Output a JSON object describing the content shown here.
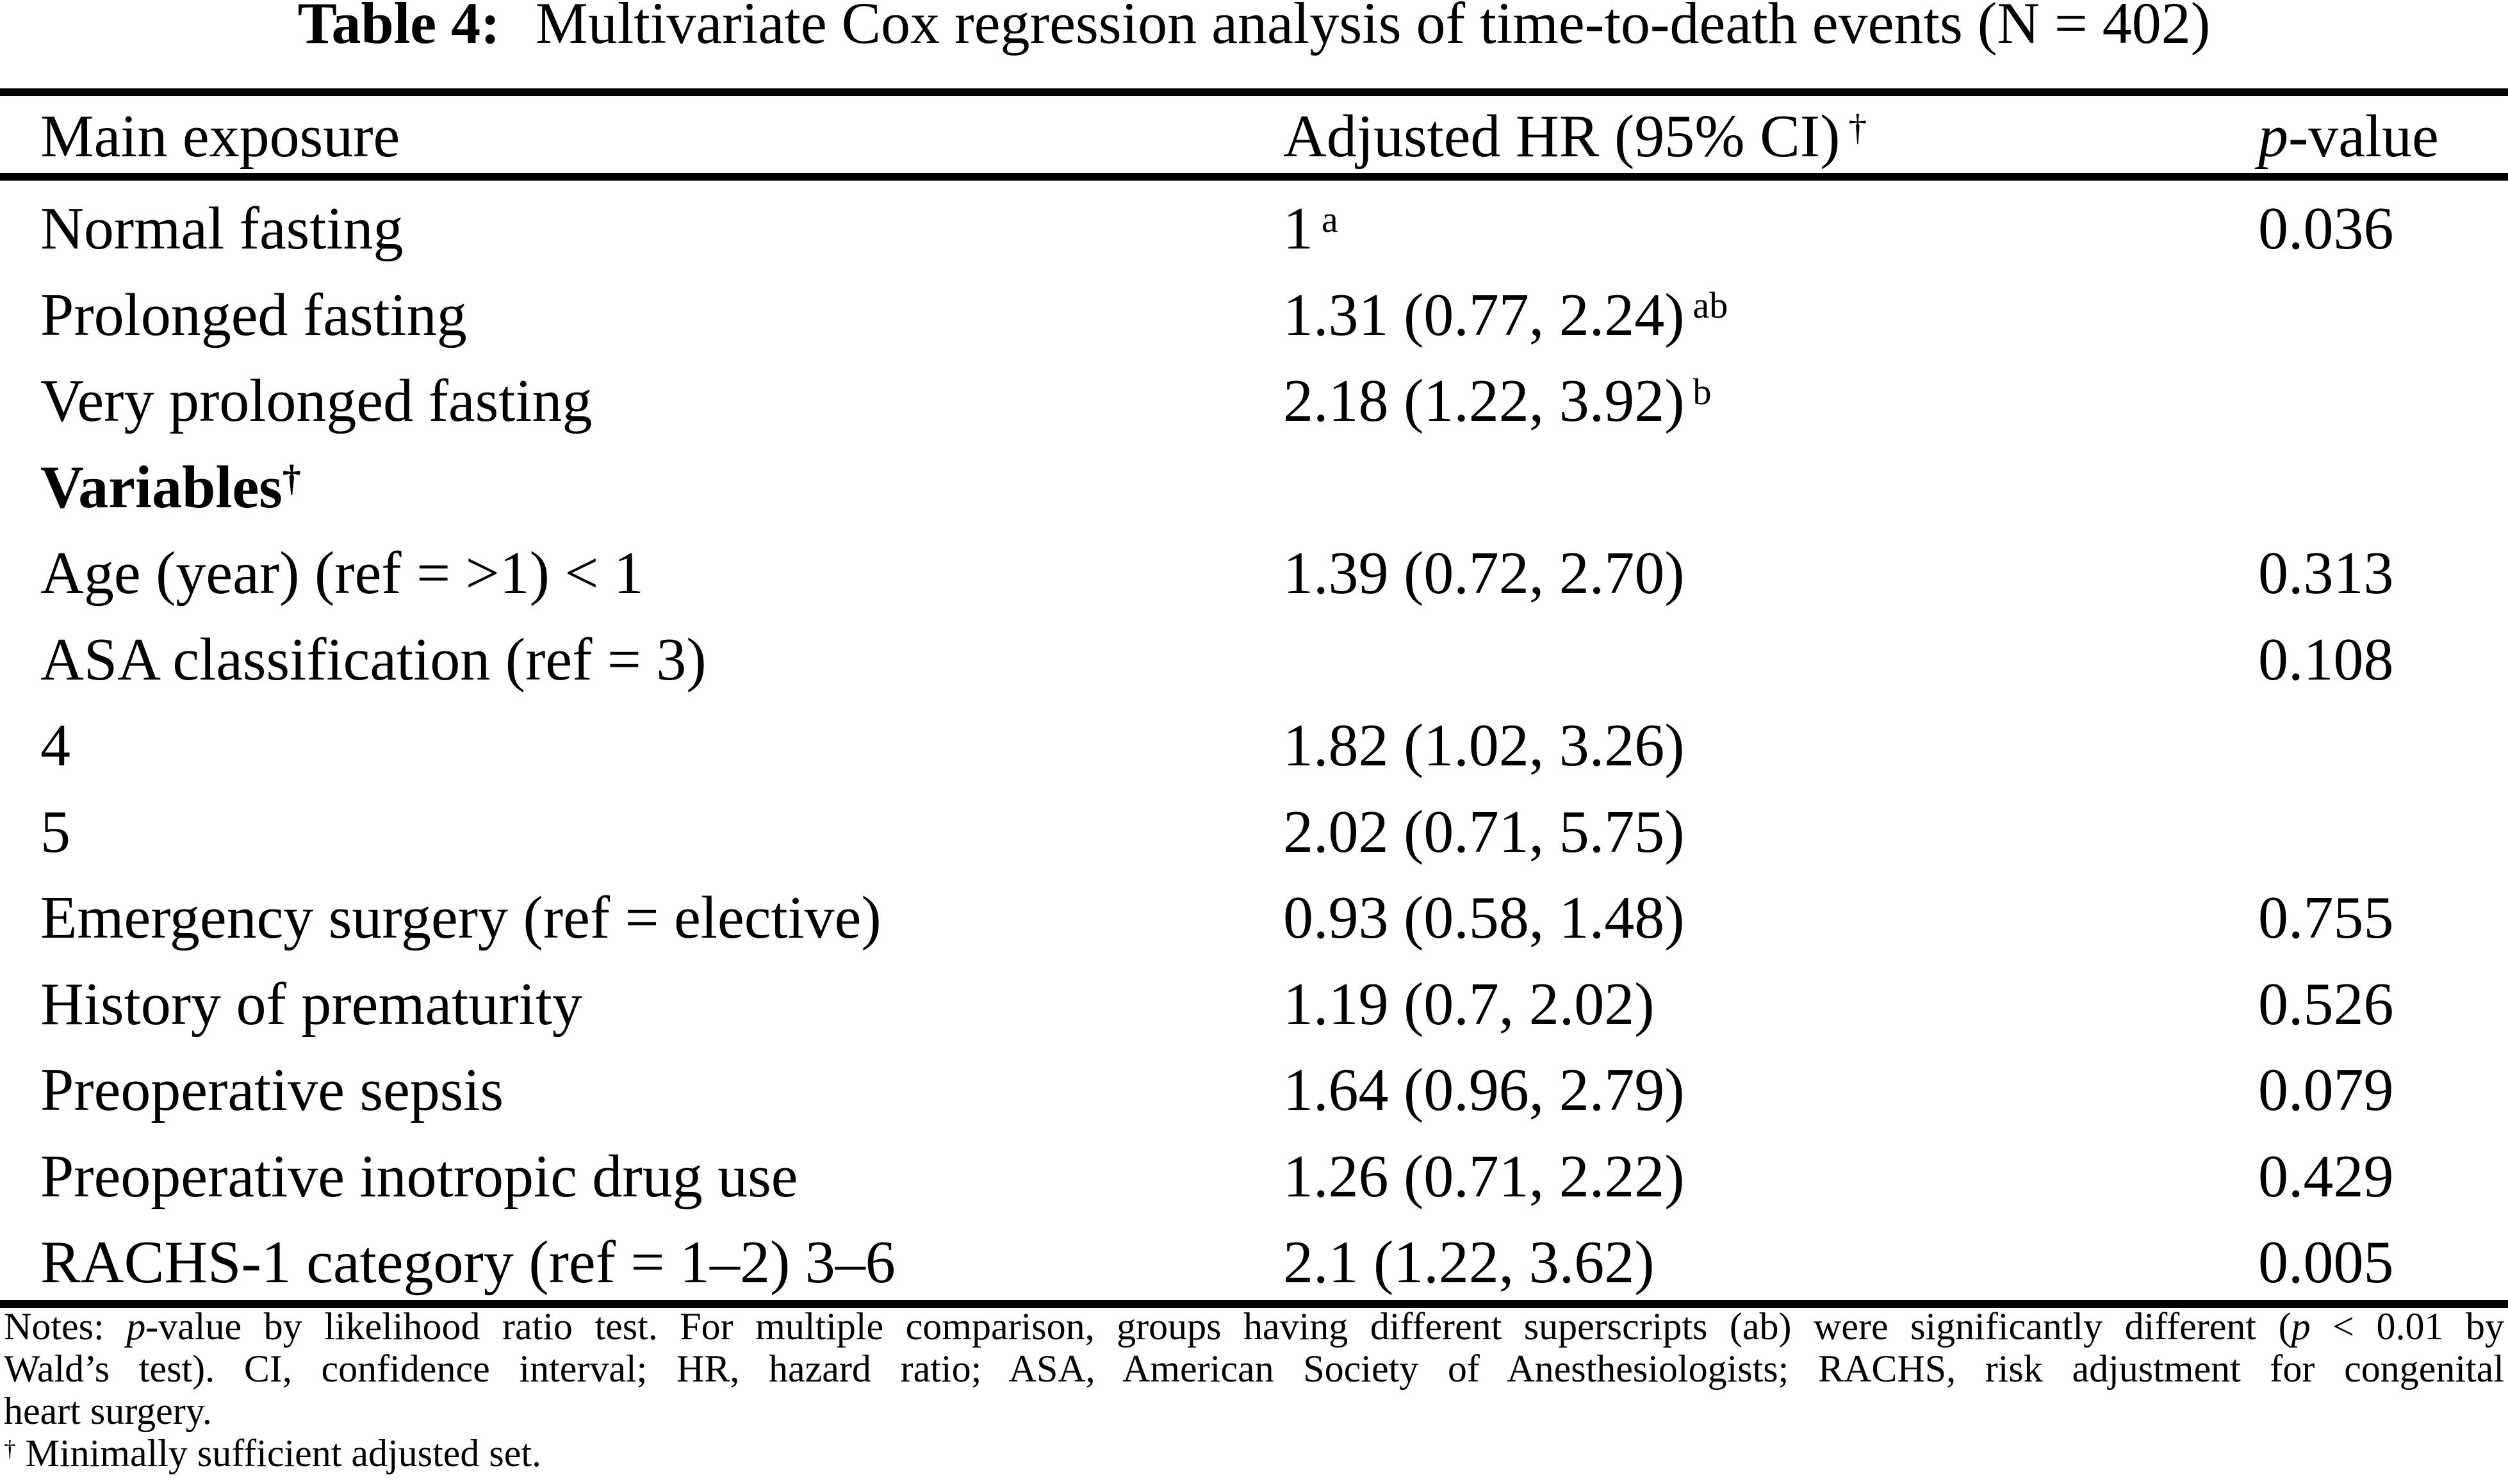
{
  "title": {
    "prefix": "Table 4:",
    "text": "Multivariate Cox regression analysis of time-to-death events (N = 402)"
  },
  "header": {
    "col1": "Main exposure",
    "col2": "Adjusted HR (95% CI)",
    "col2_sup": "†",
    "col3_italic": "p",
    "col3_rest": "-value"
  },
  "rows": [
    {
      "label": "Normal fasting",
      "hr": "1",
      "hr_sup": "a",
      "p": "0.036"
    },
    {
      "label": "Prolonged fasting",
      "hr": "1.31 (0.77, 2.24)",
      "hr_sup": "ab",
      "p": ""
    },
    {
      "label": "Very prolonged fasting",
      "hr": "2.18 (1.22, 3.92)",
      "hr_sup": "b",
      "p": ""
    },
    {
      "label": "Variables",
      "label_sup": "†",
      "hr": "",
      "p": ""
    },
    {
      "label": "Age (year) (ref = >1) < 1",
      "hr": "1.39 (0.72, 2.70)",
      "p": "0.313"
    },
    {
      "label": "ASA classification (ref = 3)",
      "hr": "",
      "p": "0.108"
    },
    {
      "label": "4",
      "hr": "1.82 (1.02, 3.26)",
      "p": ""
    },
    {
      "label": "5",
      "hr": "2.02 (0.71, 5.75)",
      "p": ""
    },
    {
      "label": "Emergency surgery (ref = elective)",
      "hr": "0.93 (0.58, 1.48)",
      "p": "0.755"
    },
    {
      "label": "History of prematurity",
      "hr": "1.19 (0.7, 2.02)",
      "p": "0.526"
    },
    {
      "label": "Preoperative sepsis",
      "hr": "1.64 (0.96, 2.79)",
      "p": "0.079"
    },
    {
      "label": "Preoperative inotropic drug use",
      "hr": "1.26 (0.71, 2.22)",
      "p": "0.429"
    },
    {
      "label": "RACHS-1 category (ref = 1–2) 3–6",
      "hr": "2.1 (1.22, 3.62)",
      "p": "0.005"
    }
  ],
  "notes": {
    "line1": [
      {
        "t": "Notes: "
      },
      {
        "t": "p"
      },
      {
        "t": "-value by likelihood ratio test. For multiple comparison, groups having different superscripts (ab) were significantly different ("
      },
      {
        "t": "p"
      },
      {
        "t": " < 0.01 by"
      }
    ],
    "line2": "Wald’s test). CI, confidence interval; HR, hazard ratio; ASA, American Society of Anesthesiologists; RACHS, risk adjustment for congenital",
    "line3": "heart surgery.",
    "footnote_dagger": "†",
    "footnote_text": "Minimally sufficient adjusted set."
  }
}
